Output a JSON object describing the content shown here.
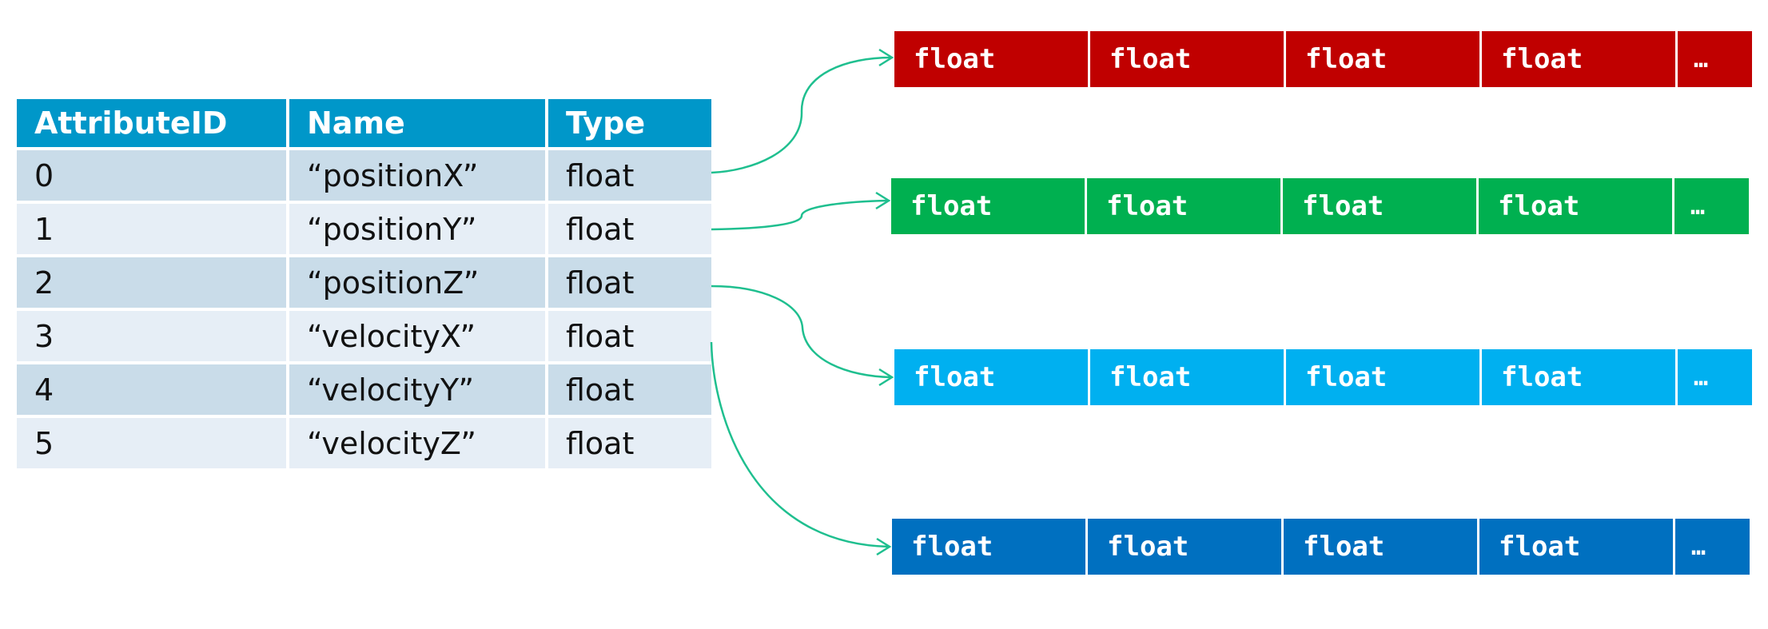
{
  "table": {
    "headers": [
      "AttributeID",
      "Name",
      "Type"
    ],
    "rows": [
      {
        "id": "0",
        "name": "“positionX”",
        "type": "float"
      },
      {
        "id": "1",
        "name": "“positionY”",
        "type": "float"
      },
      {
        "id": "2",
        "name": "“positionZ”",
        "type": "float"
      },
      {
        "id": "3",
        "name": "“velocityX”",
        "type": "float"
      },
      {
        "id": "4",
        "name": "“velocityY”",
        "type": "float"
      },
      {
        "id": "5",
        "name": "“velocityZ”",
        "type": "float"
      }
    ],
    "header_color": "#0097c9",
    "row_color_odd": "#c9dce9",
    "row_color_even": "#e6eef6"
  },
  "arrays": [
    {
      "color": "#c00000",
      "cells": [
        "float",
        "float",
        "float",
        "float",
        "…"
      ]
    },
    {
      "color": "#00b050",
      "cells": [
        "float",
        "float",
        "float",
        "float",
        "…"
      ]
    },
    {
      "color": "#00b0f0",
      "cells": [
        "float",
        "float",
        "float",
        "float",
        "…"
      ]
    },
    {
      "color": "#0070c0",
      "cells": [
        "float",
        "float",
        "float",
        "float",
        "…"
      ]
    }
  ],
  "connector_color": "#1fbf8f"
}
